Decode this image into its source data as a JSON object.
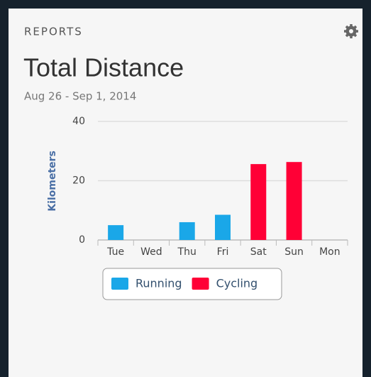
{
  "header": {
    "section": "REPORTS"
  },
  "chart_data": {
    "type": "bar",
    "title": "Total Distance",
    "subtitle": "Aug 26 - Sep 1, 2014",
    "y_label": "Kilometers",
    "categories": [
      "Tue",
      "Wed",
      "Thu",
      "Fri",
      "Sat",
      "Sun",
      "Mon"
    ],
    "series": [
      {
        "name": "Running",
        "color": "#1aa7e8",
        "values": [
          5,
          null,
          6,
          8.5,
          null,
          null,
          null
        ]
      },
      {
        "name": "Cycling",
        "color": "#ff0036",
        "values": [
          null,
          null,
          null,
          null,
          25.6,
          26.3,
          null
        ]
      }
    ],
    "ylim": [
      0,
      40
    ],
    "yticks": [
      0,
      20,
      40
    ],
    "grid": true,
    "legend": "bottom"
  }
}
